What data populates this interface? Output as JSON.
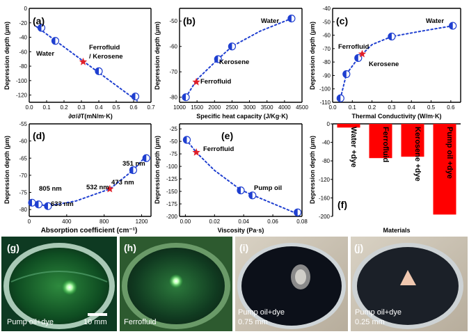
{
  "chart_data": [
    {
      "panel": "(a)",
      "type": "scatter",
      "xlabel": "∂σ/∂T(mN/m·K)",
      "ylabel": "Depression depth (μm)",
      "xlim": [
        0.0,
        0.7
      ],
      "ylim": [
        -130,
        0
      ],
      "xticks": [
        "0.0",
        "0.1",
        "0.2",
        "0.3",
        "0.4",
        "0.5",
        "0.6",
        "0.7"
      ],
      "yticks": [
        "0",
        "-20",
        "-40",
        "-60",
        "-80",
        "-100",
        "-120"
      ],
      "points": [
        {
          "x": 0.07,
          "y": -27
        },
        {
          "x": 0.15,
          "y": -45
        },
        {
          "x": 0.4,
          "y": -87
        },
        {
          "x": 0.61,
          "y": -122
        }
      ],
      "star": {
        "x": 0.31,
        "y": -74
      },
      "fit": [
        [
          0.04,
          -25
        ],
        [
          0.62,
          -128
        ]
      ],
      "annotations": [
        "Water",
        "Ferrofluid",
        "/ Kerosene"
      ]
    },
    {
      "panel": "(b)",
      "type": "scatter",
      "xlabel": "Specific heat capacity (J/Kg·K)",
      "ylabel": "Depression depth (μm)",
      "xlim": [
        1000,
        4500
      ],
      "ylim": [
        -82,
        -45
      ],
      "xticks": [
        "1000",
        "1500",
        "2000",
        "2500",
        "3000",
        "3500",
        "4000",
        "4500"
      ],
      "yticks": [
        "-50",
        "-60",
        "-70",
        "-80"
      ],
      "points": [
        {
          "x": 1180,
          "y": -80
        },
        {
          "x": 2100,
          "y": -65
        },
        {
          "x": 2500,
          "y": -60
        },
        {
          "x": 4200,
          "y": -49
        }
      ],
      "star": {
        "x": 1480,
        "y": -74
      },
      "fit": [
        [
          1180,
          -80
        ],
        [
          1500,
          -73
        ],
        [
          2100,
          -65
        ],
        [
          2500,
          -60
        ],
        [
          3300,
          -54
        ],
        [
          4200,
          -49
        ]
      ],
      "annotations": [
        "Water",
        "Kerosene",
        "Ferrofluid"
      ]
    },
    {
      "panel": "(c)",
      "type": "scatter",
      "xlabel": "Thermal Conductivity (W/m·K)",
      "ylabel": "Depression depth (μm)",
      "xlim": [
        0.0,
        0.65
      ],
      "ylim": [
        -110,
        -40
      ],
      "xticks": [
        "0.0",
        "0.1",
        "0.2",
        "0.3",
        "0.4",
        "0.5",
        "0.6"
      ],
      "yticks": [
        "-40",
        "-50",
        "-60",
        "-70",
        "-80",
        "-90",
        "-100",
        "-110"
      ],
      "points": [
        {
          "x": 0.04,
          "y": -107
        },
        {
          "x": 0.07,
          "y": -89
        },
        {
          "x": 0.13,
          "y": -77
        },
        {
          "x": 0.3,
          "y": -61
        },
        {
          "x": 0.61,
          "y": -53
        }
      ],
      "star": {
        "x": 0.15,
        "y": -74
      },
      "fit": [
        [
          0.04,
          -107
        ],
        [
          0.07,
          -89
        ],
        [
          0.13,
          -77
        ],
        [
          0.2,
          -67
        ],
        [
          0.3,
          -61
        ],
        [
          0.45,
          -57
        ],
        [
          0.61,
          -53
        ]
      ],
      "annotations": [
        "Water",
        "Ferrofluid",
        "Kerosene"
      ]
    },
    {
      "panel": "(d)",
      "type": "scatter",
      "xlabel": "Absorption coefficient (cm⁻¹)",
      "ylabel": "Depression depth (μm)",
      "xlim": [
        0,
        1300
      ],
      "ylim": [
        -82,
        -55
      ],
      "xticks": [
        "0",
        "400",
        "800",
        "1200"
      ],
      "yticks": [
        "-55",
        "-60",
        "-65",
        "-70",
        "-75",
        "-80"
      ],
      "points": [
        {
          "x": 30,
          "y": -78
        },
        {
          "x": 100,
          "y": -78.5
        },
        {
          "x": 200,
          "y": -79
        },
        {
          "x": 1110,
          "y": -68.5
        },
        {
          "x": 1250,
          "y": -65
        }
      ],
      "star": {
        "x": 860,
        "y": -74
      },
      "fit": [
        [
          10,
          -78
        ],
        [
          200,
          -79
        ],
        [
          500,
          -77.5
        ],
        [
          860,
          -74
        ],
        [
          1110,
          -68.5
        ],
        [
          1260,
          -64
        ]
      ],
      "annotations": [
        "351 nm",
        "473 nm",
        "532 nm",
        "805 nm",
        "633 nm"
      ]
    },
    {
      "panel": "(e)",
      "type": "scatter",
      "xlabel": "Viscosity (Pa·s)",
      "ylabel": "Depression depth (μm)",
      "xlim": [
        -0.004,
        0.08
      ],
      "ylim": [
        -200,
        -15
      ],
      "xticks": [
        "0.00",
        "0.02",
        "0.04",
        "0.06",
        "0.08"
      ],
      "yticks": [
        "-25",
        "-50",
        "-75",
        "-100",
        "-125",
        "-150",
        "-175",
        "-200"
      ],
      "points": [
        {
          "x": 0.001,
          "y": -47
        },
        {
          "x": 0.038,
          "y": -148
        },
        {
          "x": 0.046,
          "y": -158
        },
        {
          "x": 0.077,
          "y": -192
        }
      ],
      "star": {
        "x": 0.0075,
        "y": -72
      },
      "fit": [
        [
          0.0005,
          -46
        ],
        [
          0.0075,
          -72
        ],
        [
          0.02,
          -108
        ],
        [
          0.038,
          -147
        ],
        [
          0.05,
          -162
        ],
        [
          0.077,
          -195
        ]
      ],
      "annotations": [
        "Ferrofluid",
        "Pump oil"
      ]
    },
    {
      "panel": "(f)",
      "type": "bar",
      "xlabel": "Materials",
      "ylabel": "Depression depth (μm)",
      "ylim": [
        -200,
        0
      ],
      "yticks": [
        "0",
        "-40",
        "-80",
        "-120",
        "-160",
        "-200"
      ],
      "categories": [
        "Water +dye",
        "Ferrofluid",
        "Kerosene +dye",
        "Pump oil +dye"
      ],
      "values": [
        -8,
        -74,
        -71,
        -196
      ],
      "bar_color": "#ff0000"
    }
  ],
  "photos": [
    {
      "label": "(g)",
      "caption": "Pump oil+dye",
      "scale": "10 mm"
    },
    {
      "label": "(h)",
      "caption": "Ferrofluid"
    },
    {
      "label": "(i)",
      "caption": "Pump oil+dye",
      "caption2": "0.75 mm"
    },
    {
      "label": "(j)",
      "caption": "Pump oil+dye",
      "caption2": "0.25 mm"
    }
  ],
  "colors": {
    "marker": "#1f3fd0",
    "star": "#e0202a",
    "fit": "#1f3fd0",
    "bar": "#ff0000"
  }
}
